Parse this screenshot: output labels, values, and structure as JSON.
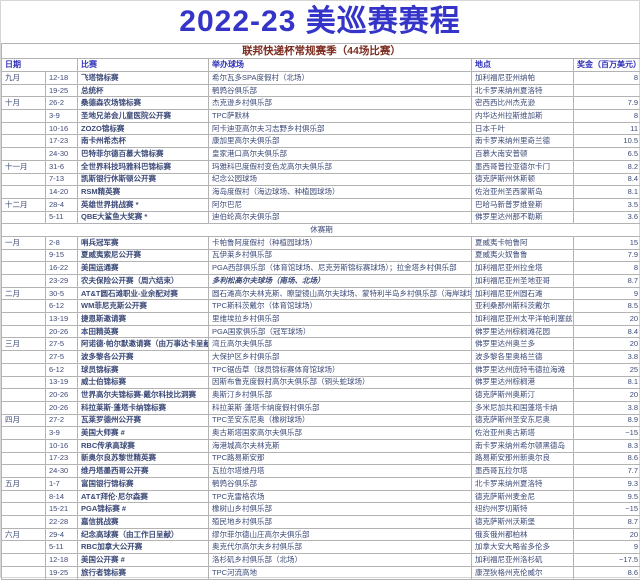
{
  "title": "2022-23 美巡赛赛程",
  "section_header": "联邦快递杯常规赛季（44场比赛）",
  "columns": [
    "日期",
    "比赛",
    "举办球场",
    "地点",
    "奖金（百万美元）"
  ],
  "rows": [
    {
      "month": "九月",
      "date": "12-18",
      "event": "飞塔锦标赛",
      "course": "希尔瓦多SPA度假村（北场）",
      "location": "加利福尼亚州纳帕",
      "purse": "8"
    },
    {
      "month": "",
      "date": "19-25",
      "event": "总统杯",
      "course": "鹌鹑谷俱乐部",
      "location": "北卡罗来纳州夏洛特",
      "purse": ""
    },
    {
      "month": "十月",
      "date": "26-2",
      "event": "桑德森农场锦标赛",
      "course": "杰克逊乡村俱乐部",
      "location": "密西西比州杰克逊",
      "purse": "7.9"
    },
    {
      "month": "",
      "date": "3-9",
      "event": "圣地兄弟会儿童医院公开赛",
      "course": "TPC萨默林",
      "location": "内华达州拉斯维加斯",
      "purse": "8"
    },
    {
      "month": "",
      "date": "10-16",
      "event": "ZOZO锦标赛",
      "course": "阿卡迪亚高尔夫习志野乡村俱乐部",
      "location": "日本千叶",
      "purse": "11"
    },
    {
      "month": "",
      "date": "17-23",
      "event": "南卡州希杰杯",
      "course": "康加里高尔夫俱乐部",
      "location": "南卡罗来纳州里奇兰德",
      "purse": "10.5"
    },
    {
      "month": "",
      "date": "24-30",
      "event": "巴特菲尔德百慕大锦标赛",
      "course": "皇家港口高尔夫俱乐部",
      "location": "百慕大南安普顿",
      "purse": "6.5"
    },
    {
      "month": "十一月",
      "date": "31-6",
      "event": "全世界科技玛雅科巴锦标赛",
      "course": "玛雅科巴度假村变色龙高尔夫俱乐部",
      "location": "墨西哥普拉亚德尔卡门",
      "purse": "8.2"
    },
    {
      "month": "",
      "date": "7-13",
      "event": "凯斯银行休斯顿公开赛",
      "course": "纪念公园球场",
      "location": "德克萨斯州休斯顿",
      "purse": "8.4"
    },
    {
      "month": "",
      "date": "14-20",
      "event": "RSM精英赛",
      "course": "海岛度假村（海边球场、种植园球场）",
      "location": "佐治亚州圣西蒙斯岛",
      "purse": "8.1"
    },
    {
      "month": "十二月",
      "date": "28-4",
      "event": "英雄世界挑战赛 *",
      "course": "阿尔巴尼",
      "location": "巴哈马新普罗维登斯",
      "purse": "3.5"
    },
    {
      "month": "",
      "date": "5-11",
      "event": "QBE大鲨鱼大奖赛 *",
      "course": "迪伯纶高尔夫俱乐部",
      "location": "佛罗里达州那不勒斯",
      "purse": "3.6"
    },
    {
      "type": "break",
      "label": "休赛期"
    },
    {
      "month": "一月",
      "date": "2-8",
      "event": "哨兵冠军赛",
      "course": "卡帕鲁阿度假村（种植园球场）",
      "location": "夏威夷卡帕鲁阿",
      "purse": "15"
    },
    {
      "month": "",
      "date": "9-15",
      "event": "夏威夷索尼公开赛",
      "course": "瓦伊莱乡村俱乐部",
      "location": "夏威夷火奴鲁鲁",
      "purse": "7.9"
    },
    {
      "month": "",
      "date": "16-22",
      "event": "美国运通赛",
      "course": "PGA西部俱乐部（体育馆球场、尼克劳斯锦标赛球场）；拉金塔乡村俱乐部",
      "location": "加利福尼亚州拉金塔",
      "purse": "8"
    },
    {
      "month": "",
      "date": "23-29",
      "event": "农夫保险公开赛（周六结束）",
      "course": "多利松高尔夫球场（南场、北场）",
      "course_italic": true,
      "location": "加利福尼亚州圣地亚哥",
      "purse": "8.7"
    },
    {
      "month": "二月",
      "date": "30-5",
      "event": "AT&T圆石滩职业-业余配对赛",
      "course": "圆石滩高尔夫林克斯、瞭望镜山高尔夫球场、蒙特利半岛乡村俱乐部（海岸球场）",
      "location": "加利福尼亚州圆石滩",
      "purse": "9"
    },
    {
      "month": "",
      "date": "6-12",
      "event": "WM菲尼克斯公开赛",
      "course": "TPC斯科茨戴尔（体育馆球场）",
      "location": "亚利桑那州斯科茨戴尔",
      "purse": "8.5"
    },
    {
      "month": "",
      "date": "13-19",
      "event": "捷恩斯邀请赛",
      "course": "里维埃拉乡村俱乐部",
      "location": "加利福尼亚州太平洋帕利塞兹",
      "purse": "20"
    },
    {
      "month": "",
      "date": "20-26",
      "event": "本田精英赛",
      "course": "PGA国家俱乐部（冠军球场）",
      "location": "佛罗里达州棕榈滩花园",
      "purse": "8.4"
    },
    {
      "month": "三月",
      "date": "27-5",
      "event": "阿诺德·帕尔默邀请赛（由万事达卡呈献）",
      "course": "湾丘高尔夫俱乐部",
      "location": "佛罗里达州奥兰多",
      "purse": "20"
    },
    {
      "month": "",
      "date": "27-5",
      "event": "波多黎各公开赛",
      "course": "大保护区乡村俱乐部",
      "location": "波多黎各里奥格兰德",
      "purse": "3.8"
    },
    {
      "month": "",
      "date": "6-12",
      "event": "球员锦标赛",
      "course": "TPC锯齿草（球员锦标赛体育馆球场）",
      "location": "佛罗里达州庞特韦德拉海滩",
      "purse": "25"
    },
    {
      "month": "",
      "date": "13-19",
      "event": "威士伯锦标赛",
      "course": "因斯布鲁克度假村高尔夫俱乐部（铜头蛇球场）",
      "location": "佛罗里达州棕榈港",
      "purse": "8.1"
    },
    {
      "month": "",
      "date": "20-26",
      "event": "世界高尔夫锦标赛-戴尔科技比洞赛",
      "course": "奥斯汀乡村俱乐部",
      "location": "德克萨斯州奥斯汀",
      "purse": "20"
    },
    {
      "month": "",
      "date": "20-26",
      "event": "科拉莱斯·蓬塔卡纳锦标赛",
      "course": "科拉莱斯·蓬塔卡纳度假村俱乐部",
      "location": "多米尼加共和国蓬塔卡纳",
      "purse": "3.8"
    },
    {
      "month": "四月",
      "date": "27-2",
      "event": "瓦莱罗德州公开赛",
      "course": "TPC圣安东尼奥（橡树球场）",
      "location": "德克萨斯州圣安东尼奥",
      "purse": "8.9"
    },
    {
      "month": "",
      "date": "3-9",
      "event": "美国大师赛 #",
      "course": "奥古斯塔国家高尔夫俱乐部",
      "location": "佐治亚州奥古斯塔",
      "purse": "~15"
    },
    {
      "month": "",
      "date": "10-16",
      "event": "RBC传承高球赛",
      "course": "海港城高尔夫林克斯",
      "location": "南卡罗来纳州希尔顿黑德岛",
      "purse": "8.3"
    },
    {
      "month": "",
      "date": "17-23",
      "event": "新奥尔良苏黎世精英赛",
      "course": "TPC路易斯安那",
      "location": "路易斯安那州新奥尔良",
      "purse": "8.6"
    },
    {
      "month": "",
      "date": "24-30",
      "event": "维丹塔墨西哥公开赛",
      "course": "瓦拉尔塔维丹塔",
      "location": "墨西哥瓦拉尔塔",
      "purse": "7.7"
    },
    {
      "month": "五月",
      "date": "1-7",
      "event": "富国银行锦标赛",
      "course": "鹌鹑谷俱乐部",
      "location": "北卡罗来纳州夏洛特",
      "purse": "9.3"
    },
    {
      "month": "",
      "date": "8-14",
      "event": "AT&T拜伦·尼尔森赛",
      "course": "TPC克雷格农场",
      "location": "德克萨斯州麦金尼",
      "purse": "9.5"
    },
    {
      "month": "",
      "date": "15-21",
      "event": "PGA锦标赛 #",
      "course": "橡树山乡村俱乐部",
      "location": "纽约州罗切斯特",
      "purse": "~15"
    },
    {
      "month": "",
      "date": "22-28",
      "event": "嘉信挑战赛",
      "course": "殖民地乡村俱乐部",
      "location": "德克萨斯州沃斯堡",
      "purse": "8.7"
    },
    {
      "month": "六月",
      "date": "29-4",
      "event": "纪念高球赛（由工作日呈献）",
      "course": "缪尔菲尔德山庄高尔夫俱乐部",
      "location": "俄亥俄州都柏林",
      "purse": "20"
    },
    {
      "month": "",
      "date": "5-11",
      "event": "RBC加拿大公开赛",
      "course": "奥克代尔高尔夫乡村俱乐部",
      "location": "加拿大安大略省多伦多",
      "purse": "9"
    },
    {
      "month": "",
      "date": "12-18",
      "event": "美国公开赛 #",
      "course": "洛杉矶乡村俱乐部（北场）",
      "location": "加利福尼亚州洛杉矶",
      "purse": "~17.5"
    },
    {
      "month": "",
      "date": "19-25",
      "event": "旅行者锦标赛",
      "course": "TPC河流高地",
      "location": "康涅狄格州克伦威尔",
      "purse": "8.6"
    }
  ]
}
